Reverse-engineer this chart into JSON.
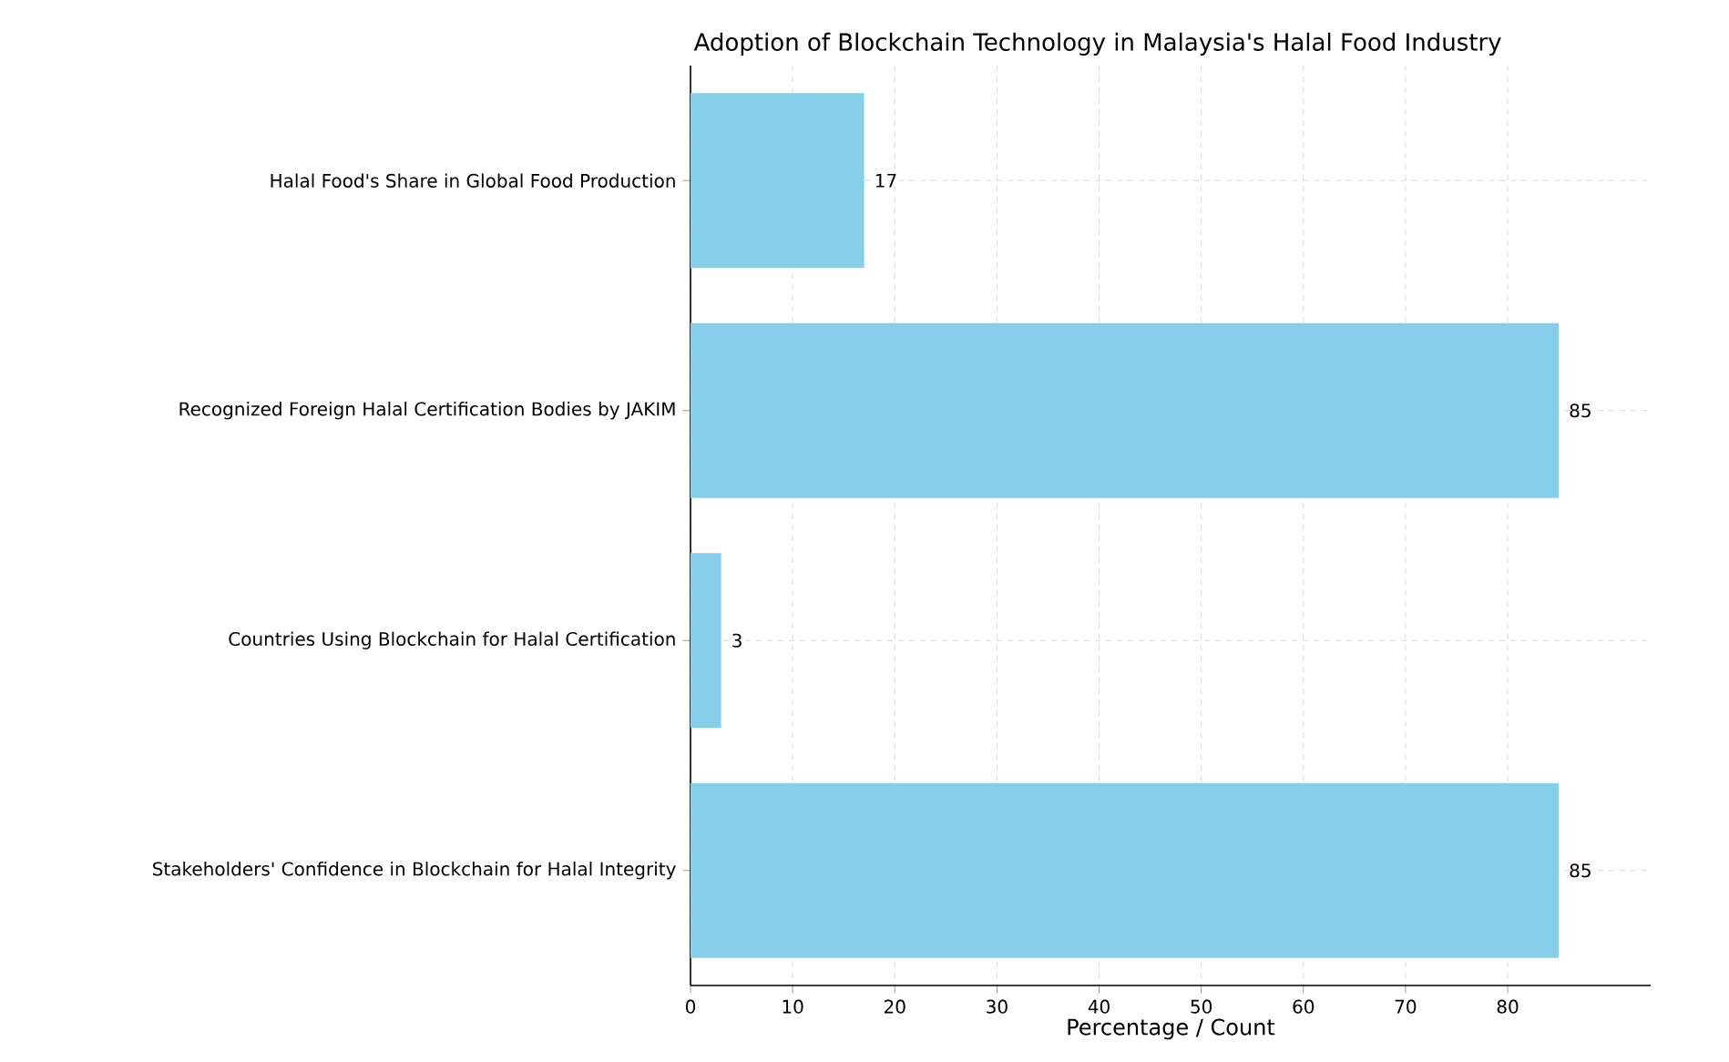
{
  "chart_data": {
    "type": "bar",
    "orientation": "horizontal",
    "title": "Adoption of Blockchain Technology in Malaysia's Halal Food Industry",
    "xlabel": "Percentage / Count",
    "categories": [
      "Halal Food's Share in Global Food Production",
      "Recognized Foreign Halal Certification Bodies by JAKIM",
      "Countries Using Blockchain for Halal Certification",
      "Stakeholders' Confidence in Blockchain for Halal Integrity"
    ],
    "values": [
      17,
      85,
      3,
      85
    ],
    "color": "#87ceeb",
    "xlim": [
      0,
      94
    ],
    "xticks": [
      0,
      10,
      20,
      30,
      40,
      50,
      60,
      70,
      80
    ],
    "grid": true,
    "data_labels": true
  }
}
